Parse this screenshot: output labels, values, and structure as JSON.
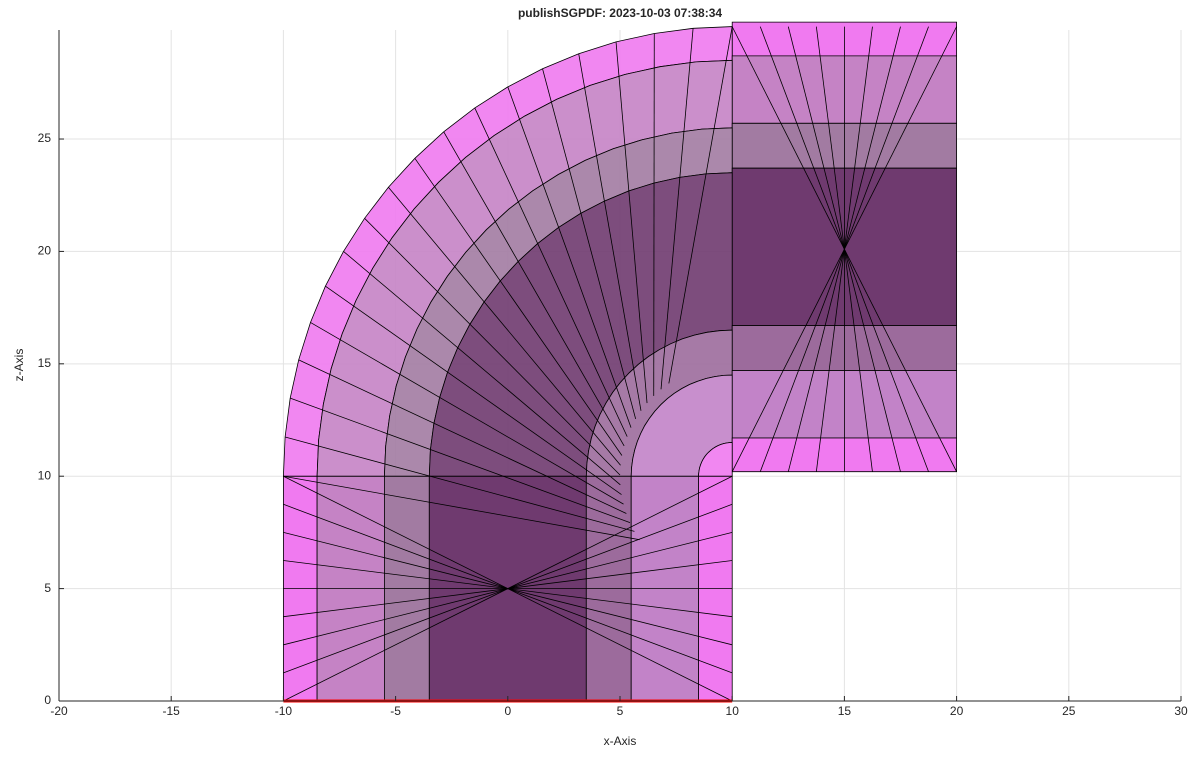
{
  "chart_data": {
    "type": "mesh",
    "title": "publishSGPDF: 2023-10-03 07:38:34",
    "x_label": "x-Axis",
    "y_label": "z-Axis",
    "xlim": [
      -20,
      30
    ],
    "ylim": [
      0,
      29.85
    ],
    "xticks": [
      -20,
      -15,
      -10,
      -5,
      0,
      5,
      10,
      15,
      20,
      25,
      30
    ],
    "yticks": [
      0,
      5,
      10,
      15,
      20,
      25
    ],
    "grid": true
  }
}
